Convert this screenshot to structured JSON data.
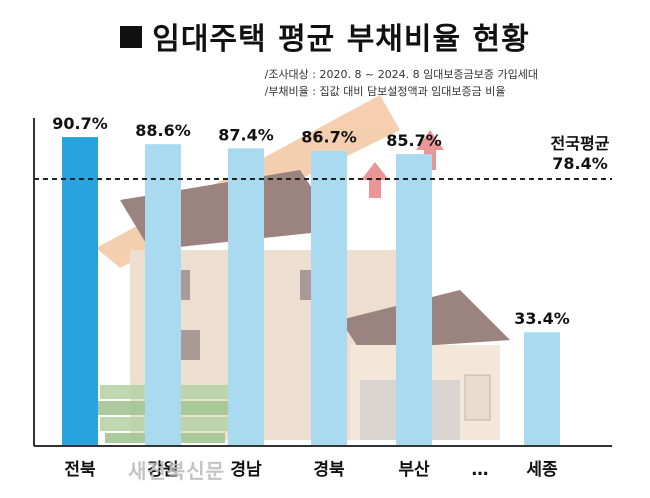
{
  "title": "임대주택 평균 부채비율 현황",
  "notes": [
    "/조사대상 : 2020. 8 ~ 2024. 8 임대보증금보증 가입세대",
    "/부채비율 : 집값 대비 담보설정액과 임대보증금 비율"
  ],
  "watermark": "새전북신문",
  "colors": {
    "highlight_bar": "#29a3e0",
    "bar": "#a9daf0",
    "axis": "#333333",
    "reference_line": "#222222"
  },
  "chart_data": {
    "type": "bar",
    "categories": [
      "전북",
      "강원",
      "경남",
      "경북",
      "부산",
      "…",
      "세종"
    ],
    "values": [
      90.7,
      88.6,
      87.4,
      86.7,
      85.7,
      null,
      33.4
    ],
    "value_labels": [
      "90.7%",
      "88.6%",
      "87.4%",
      "86.7%",
      "85.7%",
      "",
      "33.4%"
    ],
    "highlight_index": 0,
    "reference_line": {
      "label": "전국평균",
      "value": 78.4,
      "value_label": "78.4%"
    },
    "ylim": [
      0,
      100
    ],
    "grid": false,
    "title": "임대주택 평균 부채비율 현황"
  }
}
